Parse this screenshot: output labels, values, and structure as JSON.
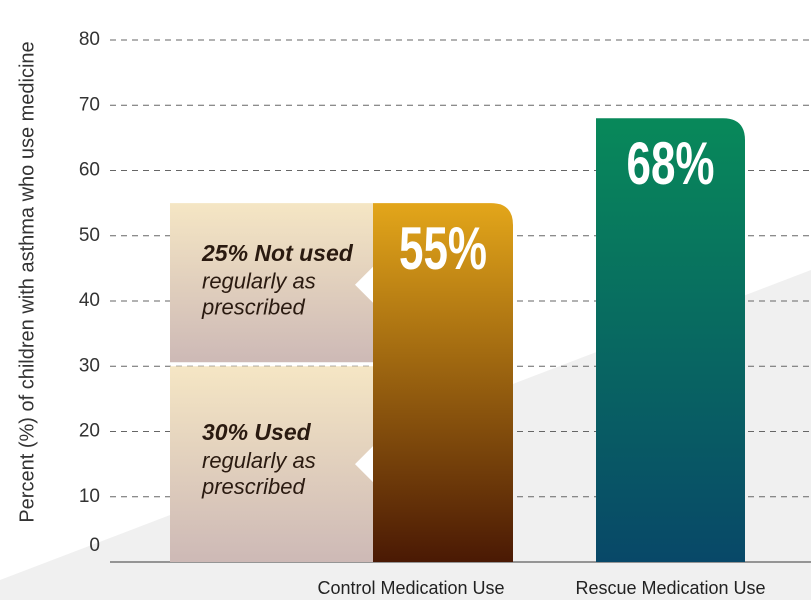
{
  "chart_data": {
    "type": "bar",
    "y_label": "Percent (%) of children with asthma who use medicine",
    "categories": [
      "Control Medication Use",
      "Rescue Medication Use"
    ],
    "values": [
      55,
      68
    ],
    "value_labels": [
      "55%",
      "68%"
    ],
    "colors": [
      [
        "#e3a61a",
        "#4a1904"
      ],
      [
        "#08895a",
        "#084868"
      ]
    ],
    "breakdown": [
      {
        "title": "30% Used",
        "lines": [
          "regularly as",
          "prescribed"
        ],
        "value": 30
      },
      {
        "title": "25% Not used",
        "lines": [
          "regularly as",
          "prescribed"
        ],
        "value": 25
      }
    ],
    "ylim": [
      0,
      80
    ],
    "yticks": [
      0,
      10,
      20,
      30,
      40,
      50,
      60,
      70,
      80
    ],
    "grid": true
  }
}
